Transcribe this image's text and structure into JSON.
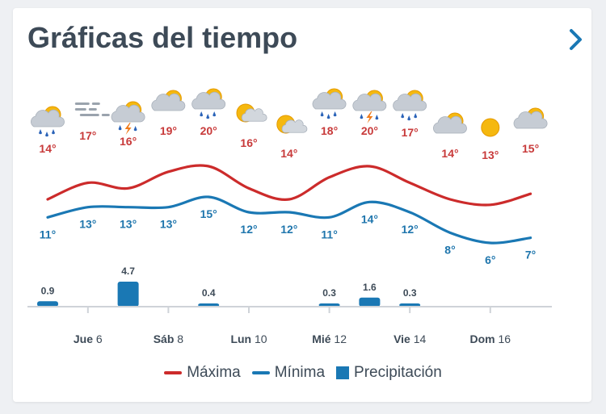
{
  "header": {
    "title": "Gráficas del tiempo"
  },
  "icons": {
    "next": "chevron-right-icon"
  },
  "colors": {
    "max": "#cc2b2b",
    "min": "#1a78b4",
    "precip": "#1a78b4",
    "max_label": "#c83a3a",
    "min_label": "#1f76ad",
    "axis": "#cfd3d8",
    "text": "#3d4a57"
  },
  "chart_data": {
    "type": "line",
    "title": "",
    "xlabel": "",
    "ylabel": "",
    "x_ticks": [
      {
        "day": "Jue",
        "num": "6"
      },
      {
        "day": "Sáb",
        "num": "8"
      },
      {
        "day": "Lun",
        "num": "10"
      },
      {
        "day": "Mié",
        "num": "12"
      },
      {
        "day": "Vie",
        "num": "14"
      },
      {
        "day": "Dom",
        "num": "16"
      }
    ],
    "days": [
      {
        "icon": "rain-sun-icon",
        "max": 14,
        "min": 11,
        "precip": 0.9
      },
      {
        "icon": "fog-icon",
        "max": 17,
        "min": 13,
        "precip": null
      },
      {
        "icon": "thunderstorm-sun-icon",
        "max": 16,
        "min": 13,
        "precip": 4.7
      },
      {
        "icon": "cloudy-sun-icon",
        "max": 19,
        "min": 13,
        "precip": null
      },
      {
        "icon": "rain-sun-icon",
        "max": 20,
        "min": 15,
        "precip": 0.4
      },
      {
        "icon": "partly-cloudy-icon",
        "max": 16,
        "min": 12,
        "precip": null
      },
      {
        "icon": "partly-cloudy-icon",
        "max": 14,
        "min": 12,
        "precip": null
      },
      {
        "icon": "rain-sun-icon",
        "max": 18,
        "min": 11,
        "precip": 0.3
      },
      {
        "icon": "thunderstorm-sun-icon",
        "max": 20,
        "min": 14,
        "precip": 1.6
      },
      {
        "icon": "rain-sun-icon",
        "max": 17,
        "min": 12,
        "precip": 0.3
      },
      {
        "icon": "cloudy-sun-icon",
        "max": 14,
        "min": 8,
        "precip": null
      },
      {
        "icon": "sun-icon",
        "max": 13,
        "min": 6,
        "precip": null
      },
      {
        "icon": "cloudy-sun-icon",
        "max": 15,
        "min": 7,
        "precip": null
      }
    ],
    "legend": [
      "Máxima",
      "Mínima",
      "Precipitación"
    ],
    "legend_position": "bottom",
    "unit": "°"
  }
}
